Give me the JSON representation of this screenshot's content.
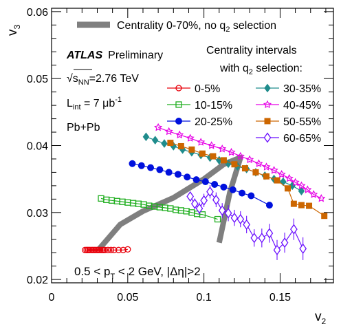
{
  "chart_data": {
    "type": "scatter",
    "xlabel_main": "v",
    "xlabel_sub": "2",
    "ylabel_main": "v",
    "ylabel_sub": "3",
    "xlim": [
      0,
      0.185
    ],
    "ylim": [
      0.0195,
      0.0605
    ],
    "x_ticks": [
      0,
      0.05,
      0.1,
      0.15
    ],
    "x_tick_labels": [
      "0",
      "0.05",
      "0.1",
      "0.15"
    ],
    "y_ticks": [
      0.02,
      0.03,
      0.04,
      0.05,
      0.06
    ],
    "y_tick_labels": [
      "0.02",
      "0.03",
      "0.04",
      "0.05",
      "0.06"
    ],
    "annotations": {
      "atlas": "ATLAS",
      "preliminary": "Preliminary",
      "sqrt_prefix": "√",
      "sqrt_s": "s",
      "sqrt_sub": "NN",
      "energy": "=2.76 TeV",
      "lumi_l": "L",
      "lumi_sub": "int",
      "lumi_val": " = 7 μb",
      "lumi_sup": "-1",
      "system": "Pb+Pb",
      "kin_pre": "0.5 < p",
      "kin_sub": "T",
      "kin_post": " < 2 GeV, |Δη|>2",
      "band_label_pre": "Centrality 0-70%, no q",
      "band_label_sub": "2",
      "band_label_post": " selection",
      "legend_title1": "Centrality intervals",
      "legend_title2_pre": "with q",
      "legend_title2_sub": "2",
      "legend_title2_post": " selection:"
    },
    "band": {
      "name": "Centrality 0-70%, no q2 selection",
      "color": "#7f7f7f",
      "points": [
        [
          0.031,
          0.0245
        ],
        [
          0.045,
          0.0282
        ],
        [
          0.06,
          0.0302
        ],
        [
          0.08,
          0.0322
        ],
        [
          0.1,
          0.035
        ],
        [
          0.113,
          0.0372
        ],
        [
          0.124,
          0.0382
        ],
        [
          0.117,
          0.033
        ],
        [
          0.11,
          0.0255
        ]
      ]
    },
    "series": [
      {
        "name": "0-5%",
        "color": "#e8000b",
        "marker": "circle-open",
        "legend_col": 0,
        "legend_row": 0,
        "x": [
          0.022,
          0.023,
          0.024,
          0.025,
          0.026,
          0.027,
          0.028,
          0.029,
          0.03,
          0.031,
          0.032,
          0.033,
          0.034,
          0.035,
          0.037,
          0.039,
          0.041,
          0.044,
          0.047,
          0.05
        ],
        "y": [
          0.0244,
          0.0244,
          0.0244,
          0.0244,
          0.0244,
          0.0244,
          0.0244,
          0.0244,
          0.0244,
          0.0244,
          0.0244,
          0.0244,
          0.0244,
          0.0244,
          0.0244,
          0.0244,
          0.0244,
          0.0244,
          0.0244,
          0.0245
        ]
      },
      {
        "name": "10-15%",
        "color": "#1fae1f",
        "marker": "square-open",
        "legend_col": 0,
        "legend_row": 1,
        "x": [
          0.0325,
          0.036,
          0.0395,
          0.043,
          0.0465,
          0.05,
          0.0535,
          0.057,
          0.0605,
          0.064,
          0.0675,
          0.071,
          0.0745,
          0.078,
          0.0815,
          0.085,
          0.0885,
          0.092,
          0.0955,
          0.099,
          0.109
        ],
        "y": [
          0.0321,
          0.0319,
          0.0318,
          0.0317,
          0.0316,
          0.0315,
          0.0314,
          0.0313,
          0.0312,
          0.031,
          0.0309,
          0.0308,
          0.0307,
          0.0306,
          0.0304,
          0.0303,
          0.0302,
          0.03,
          0.0298,
          0.0297,
          0.029
        ]
      },
      {
        "name": "20-25%",
        "color": "#0011dd",
        "marker": "circle-filled",
        "legend_col": 0,
        "legend_row": 2,
        "x": [
          0.053,
          0.059,
          0.065,
          0.071,
          0.077,
          0.083,
          0.089,
          0.095,
          0.101,
          0.107,
          0.113,
          0.119,
          0.125,
          0.131,
          0.143
        ],
        "y": [
          0.0373,
          0.037,
          0.0367,
          0.0364,
          0.036,
          0.0357,
          0.0353,
          0.0349,
          0.0346,
          0.0342,
          0.0338,
          0.0334,
          0.0329,
          0.0325,
          0.0311
        ]
      },
      {
        "name": "30-35%",
        "color": "#1f8c8c",
        "marker": "diamond-filled",
        "legend_col": 1,
        "legend_row": 0,
        "x": [
          0.062,
          0.068,
          0.074,
          0.08,
          0.086,
          0.092,
          0.098,
          0.104,
          0.11,
          0.116,
          0.122,
          0.128,
          0.134,
          0.14,
          0.146,
          0.152,
          0.158,
          0.164
        ],
        "y": [
          0.0413,
          0.0408,
          0.0403,
          0.0399,
          0.0394,
          0.039,
          0.0386,
          0.0382,
          0.0378,
          0.0373,
          0.0369,
          0.0365,
          0.036,
          0.0355,
          0.035,
          0.0346,
          0.034,
          0.0332
        ]
      },
      {
        "name": "40-45%",
        "color": "#e600e6",
        "marker": "star-open",
        "legend_col": 1,
        "legend_row": 1,
        "x": [
          0.07,
          0.077,
          0.084,
          0.091,
          0.098,
          0.105,
          0.112,
          0.118,
          0.124,
          0.13,
          0.136,
          0.141,
          0.146,
          0.151,
          0.156,
          0.16,
          0.164,
          0.168,
          0.172,
          0.177
        ],
        "y": [
          0.0427,
          0.0421,
          0.0416,
          0.0411,
          0.0405,
          0.04,
          0.0395,
          0.039,
          0.0384,
          0.0379,
          0.0373,
          0.0368,
          0.0363,
          0.0357,
          0.0351,
          0.0345,
          0.034,
          0.0334,
          0.0327,
          0.0321
        ]
      },
      {
        "name": "50-55%",
        "color": "#cc6600",
        "marker": "square-filled",
        "legend_col": 1,
        "legend_row": 2,
        "x": [
          0.078,
          0.085,
          0.092,
          0.099,
          0.106,
          0.113,
          0.12,
          0.127,
          0.134,
          0.141,
          0.148,
          0.155,
          0.159,
          0.164,
          0.169,
          0.179
        ],
        "y": [
          0.0404,
          0.0399,
          0.0394,
          0.0388,
          0.0384,
          0.0378,
          0.0372,
          0.0366,
          0.036,
          0.0354,
          0.0348,
          0.0336,
          0.0313,
          0.0311,
          0.031,
          0.0295
        ]
      },
      {
        "name": "60-65%",
        "color": "#6a0dff",
        "marker": "diamond-open",
        "legend_col": 1,
        "legend_row": 3,
        "x": [
          0.091,
          0.094,
          0.097,
          0.1,
          0.104,
          0.108,
          0.112,
          0.116,
          0.12,
          0.124,
          0.128,
          0.133,
          0.138,
          0.143,
          0.148,
          0.153,
          0.159,
          0.165
        ],
        "y": [
          0.0324,
          0.0313,
          0.0306,
          0.0318,
          0.0331,
          0.0319,
          0.0303,
          0.0299,
          0.0292,
          0.029,
          0.0282,
          0.0262,
          0.0262,
          0.0269,
          0.0244,
          0.0255,
          0.0275,
          0.0246
        ],
        "err": [
          0.0006,
          0.0008,
          0.0009,
          0.001,
          0.001,
          0.0011,
          0.0011,
          0.0012,
          0.0012,
          0.0012,
          0.0013,
          0.0013,
          0.0014,
          0.0014,
          0.0015,
          0.0015,
          0.0016,
          0.0017
        ]
      }
    ]
  }
}
